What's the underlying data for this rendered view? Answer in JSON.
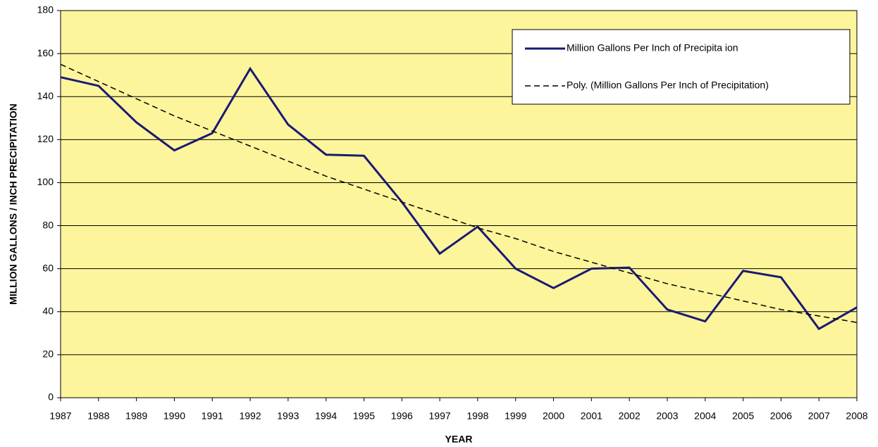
{
  "chart_data": {
    "type": "line",
    "x_label": "YEAR",
    "y_label": "MILLION GALLONS / INCH PRECIPITATION",
    "x": [
      1987,
      1988,
      1989,
      1990,
      1991,
      1992,
      1993,
      1994,
      1995,
      1996,
      1997,
      1998,
      1999,
      2000,
      2001,
      2002,
      2003,
      2004,
      2005,
      2006,
      2007,
      2008
    ],
    "xlim": [
      1987,
      2008
    ],
    "xticks": [
      1987,
      1988,
      1989,
      1990,
      1991,
      1992,
      1993,
      1994,
      1995,
      1996,
      1997,
      1998,
      1999,
      2000,
      2001,
      2002,
      2003,
      2004,
      2005,
      2006,
      2007,
      2008
    ],
    "ylim": [
      0,
      180
    ],
    "yticks": [
      0,
      20,
      40,
      60,
      80,
      100,
      120,
      140,
      160,
      180
    ],
    "grid": true,
    "background": "#fdf59b",
    "legend": "upper right",
    "series": [
      {
        "name": "Million Gallons Per Inch of Precipita ion",
        "color": "#1a1a75",
        "line_style": "solid",
        "values": [
          149,
          145,
          128,
          115,
          123,
          153,
          127,
          113,
          112.5,
          91,
          67,
          79.5,
          60,
          51,
          60,
          60.5,
          41,
          35.5,
          59,
          56,
          32,
          42
        ]
      },
      {
        "name": "Poly. (Million Gallons Per Inch of Precipitation)",
        "color": "#000000",
        "line_style": "dashed",
        "values": [
          155,
          147,
          139,
          131,
          124,
          117,
          110,
          103,
          97,
          91,
          85,
          79,
          74,
          68,
          63,
          58,
          53,
          49,
          45,
          41,
          38,
          35
        ]
      }
    ]
  }
}
